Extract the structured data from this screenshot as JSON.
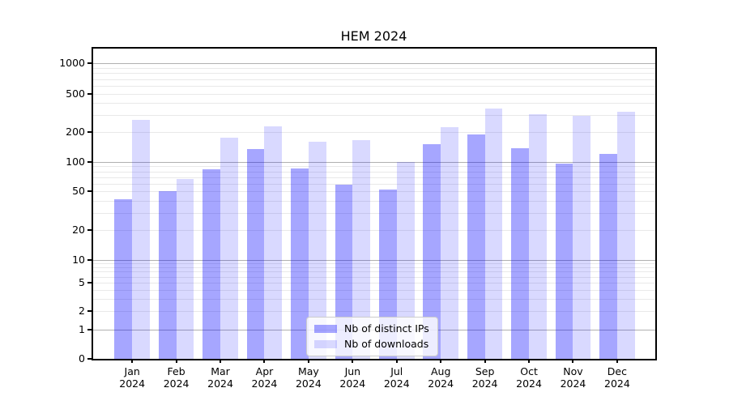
{
  "chart_data": {
    "type": "bar",
    "title": "HEM 2024",
    "categories": [
      "Jan",
      "Feb",
      "Mar",
      "Apr",
      "May",
      "Jun",
      "Jul",
      "Aug",
      "Sep",
      "Oct",
      "Nov",
      "Dec"
    ],
    "category_year": "2024",
    "series": [
      {
        "name": "Nb of distinct IPs",
        "color": "#0000FF59",
        "values": [
          41,
          50,
          84,
          136,
          85,
          58,
          52,
          150,
          190,
          137,
          97,
          120
        ]
      },
      {
        "name": "Nb of downloads",
        "color": "#0000FF26",
        "values": [
          270,
          67,
          175,
          228,
          159,
          166,
          100,
          224,
          350,
          305,
          293,
          325
        ]
      }
    ],
    "yscale": "symlog",
    "ylim": [
      0,
      1000
    ],
    "ytick_labels": [
      "0",
      "1",
      "2",
      "5",
      "10",
      "20",
      "50",
      "100",
      "200",
      "500",
      "1000"
    ],
    "ytick_values": [
      0,
      1,
      2,
      5,
      10,
      20,
      50,
      100,
      200,
      500,
      1000
    ],
    "grid": true,
    "grid_major_color": "#b0b0b0",
    "grid_minor_color": "#e9e9e9",
    "legend_position": "lower-center",
    "xlabel": "",
    "ylabel": ""
  }
}
